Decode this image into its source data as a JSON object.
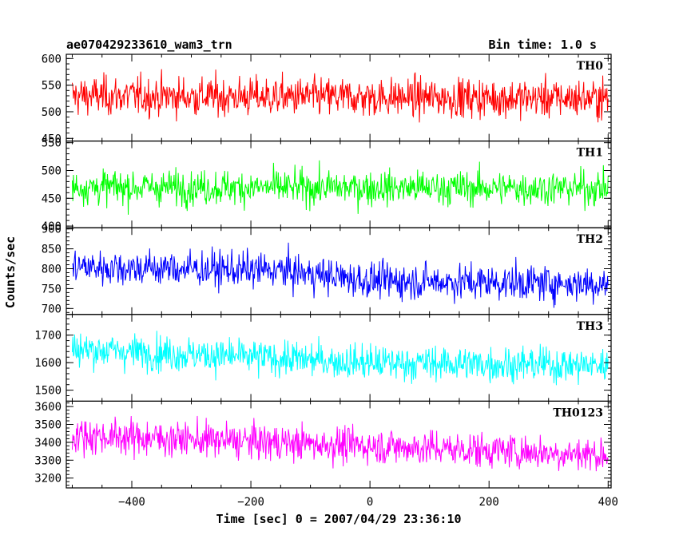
{
  "title_left": "ae070429233610_wam3_trn",
  "title_right": "Bin time: 1.0 s",
  "ylabel": "Counts/sec",
  "xlabel": "Time [sec] 0 = 2007/04/29 23:36:10",
  "chart_data": {
    "type": "line",
    "x_range": [
      -510,
      405
    ],
    "x_ticks": [
      -400,
      -200,
      0,
      200,
      400
    ],
    "x_step": 1,
    "x_start": -500,
    "x_end": 400,
    "panels": [
      {
        "name": "TH0",
        "color": "#ff0000",
        "ylim": [
          445,
          608
        ],
        "yticks": [
          450,
          500,
          550,
          600
        ],
        "baseline": [
          [
            -500,
            530
          ],
          [
            400,
            525
          ]
        ],
        "noise_sd": 26
      },
      {
        "name": "TH1",
        "color": "#00ff00",
        "ylim": [
          397,
          553
        ],
        "yticks": [
          400,
          450,
          500,
          550
        ],
        "baseline": [
          [
            -500,
            470
          ],
          [
            400,
            468
          ]
        ],
        "noise_sd": 22
      },
      {
        "name": "TH2",
        "color": "#0000ff",
        "ylim": [
          685,
          903
        ],
        "yticks": [
          700,
          750,
          800,
          850,
          900
        ],
        "baseline": [
          [
            -500,
            805
          ],
          [
            -150,
            795
          ],
          [
            0,
            770
          ],
          [
            400,
            762
          ]
        ],
        "noise_sd": 32
      },
      {
        "name": "TH3",
        "color": "#00ffff",
        "ylim": [
          1460,
          1775
        ],
        "yticks": [
          1500,
          1600,
          1700
        ],
        "baseline": [
          [
            -500,
            1650
          ],
          [
            0,
            1600
          ],
          [
            400,
            1590
          ]
        ],
        "noise_sd": 45
      },
      {
        "name": "TH0123",
        "color": "#ff00ff",
        "ylim": [
          3145,
          3630
        ],
        "yticks": [
          3200,
          3300,
          3400,
          3500,
          3600
        ],
        "baseline": [
          [
            -500,
            3440
          ],
          [
            0,
            3380
          ],
          [
            400,
            3330
          ]
        ],
        "noise_sd": 70
      }
    ]
  }
}
